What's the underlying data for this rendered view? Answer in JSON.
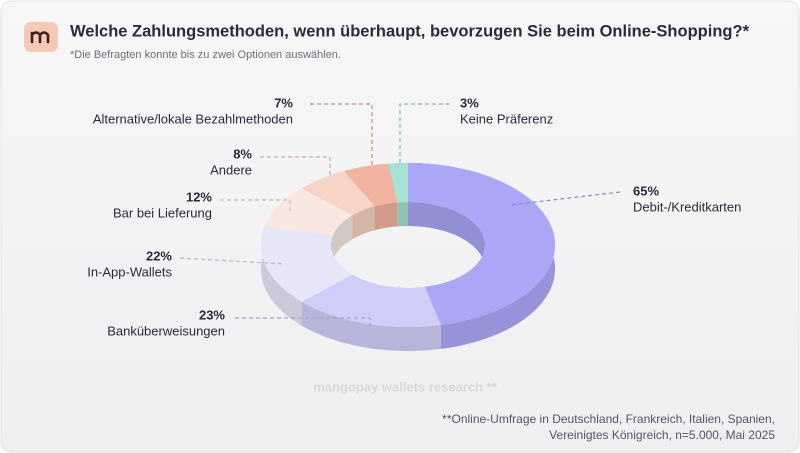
{
  "chart_data": {
    "type": "donut",
    "title": "Welche Zahlungsmethoden, wenn überhaupt, bevorzugen Sie beim Online-Shopping?*",
    "subtitle": "*Die Befragten konnte bis zu zwei Optionen auswählen.",
    "categories": [
      "Debit-/Kreditkarten",
      "Banküberweisungen",
      "In-App-Wallets",
      "Bar bei Lieferung",
      "Andere",
      "Alternative/lokale Bezahlmethoden",
      "Keine Präferenz"
    ],
    "values": [
      65,
      23,
      22,
      12,
      8,
      7,
      3
    ],
    "value_labels": [
      "65%",
      "23%",
      "22%",
      "12%",
      "8%",
      "7%",
      "3%"
    ],
    "colors": [
      "#aaa7f6",
      "#d0cef8",
      "#e7e6f8",
      "#f8e8e1",
      "#f7d4c5",
      "#f2b4a0",
      "#a6e3d3"
    ],
    "watermark": "mangopay wallets research **",
    "footnote": [
      "**Online-Umfrage in Deutschland, Frankreich, Italien, Spanien,",
      "Vereinigtes Königreich, n=5.000, Mai 2025"
    ]
  }
}
